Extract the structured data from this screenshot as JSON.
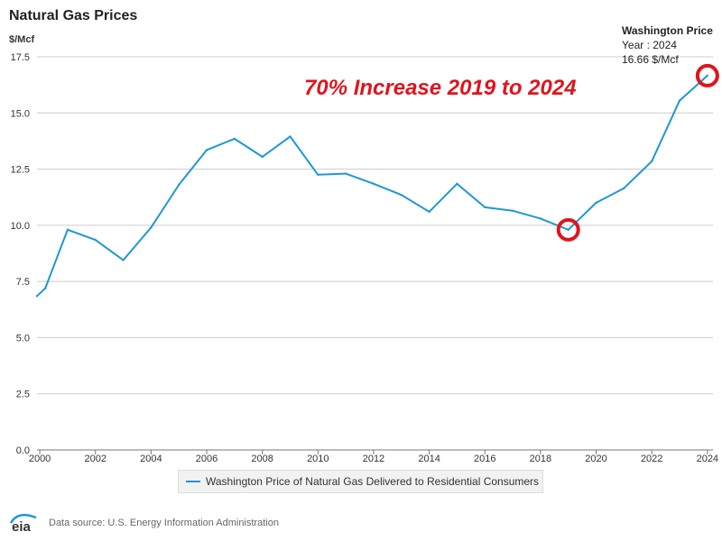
{
  "chart_title": "Natural Gas Prices",
  "unit_label": "$/Mcf",
  "annotation_text": "70% Increase 2019 to 2024",
  "tooltip": {
    "title": "Washington Price",
    "line1": "Year : 2024",
    "line2": "16.66 $/Mcf"
  },
  "legend_label": "Washington Price of Natural Gas Delivered to Residential Consumers",
  "footer": {
    "logo_text": "eia",
    "source_text": "Data source: U.S. Energy Information Administration"
  },
  "colors": {
    "series": "#1f97d4",
    "highlight": "#e0141e",
    "grid": "#cccccc",
    "axis": "#777777"
  },
  "chart_data": {
    "type": "line",
    "title": "Natural Gas Prices",
    "ylabel": "$/Mcf",
    "xlabel": "",
    "xlim": [
      1999.9,
      2024.2
    ],
    "ylim": [
      0,
      17.5
    ],
    "y_ticks": [
      "0.0",
      "2.5",
      "5.0",
      "7.5",
      "10.0",
      "12.5",
      "15.0",
      "17.5"
    ],
    "x_ticks": [
      "2000",
      "2002",
      "2004",
      "2006",
      "2008",
      "2010",
      "2012",
      "2014",
      "2016",
      "2018",
      "2020",
      "2022",
      "2024"
    ],
    "grid": true,
    "legend_position": "bottom",
    "series": [
      {
        "name": "Washington Price of Natural Gas Delivered to Residential Consumers",
        "points": [
          [
            1999.9,
            6.85
          ],
          [
            2000.2,
            7.2
          ],
          [
            2001,
            9.8
          ],
          [
            2002,
            9.35
          ],
          [
            2003,
            8.45
          ],
          [
            2004,
            9.9
          ],
          [
            2005,
            11.8
          ],
          [
            2006,
            13.35
          ],
          [
            2007,
            13.85
          ],
          [
            2008,
            13.05
          ],
          [
            2009,
            13.95
          ],
          [
            2010,
            12.25
          ],
          [
            2011,
            12.3
          ],
          [
            2012,
            11.85
          ],
          [
            2013,
            11.35
          ],
          [
            2014,
            10.6
          ],
          [
            2015,
            11.85
          ],
          [
            2016,
            10.8
          ],
          [
            2017,
            10.65
          ],
          [
            2018,
            10.3
          ],
          [
            2019,
            9.8
          ],
          [
            2020,
            11.0
          ],
          [
            2021,
            11.65
          ],
          [
            2022,
            12.85
          ],
          [
            2023,
            15.55
          ],
          [
            2024,
            16.66
          ]
        ]
      }
    ],
    "highlighted_years": [
      2019,
      2024
    ]
  }
}
